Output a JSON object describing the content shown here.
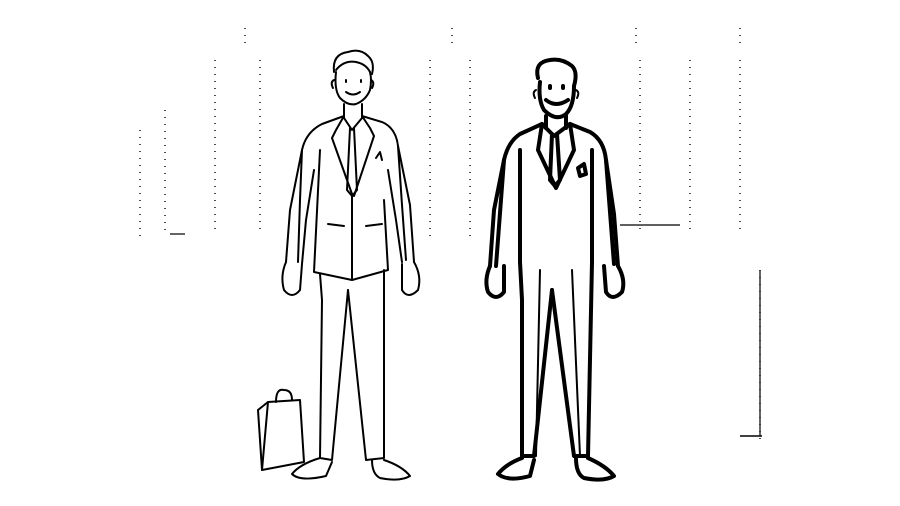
{
  "scene": {
    "description_free": true,
    "palette": {
      "ink": "#000000",
      "paper": "#ffffff"
    },
    "figures": [
      {
        "name": "man-clean-shaven",
        "icon": "person-suit-icon",
        "props": [
          "briefcase-bag-icon"
        ]
      },
      {
        "name": "man-bearded",
        "icon": "person-suit-icon",
        "props": []
      }
    ]
  }
}
